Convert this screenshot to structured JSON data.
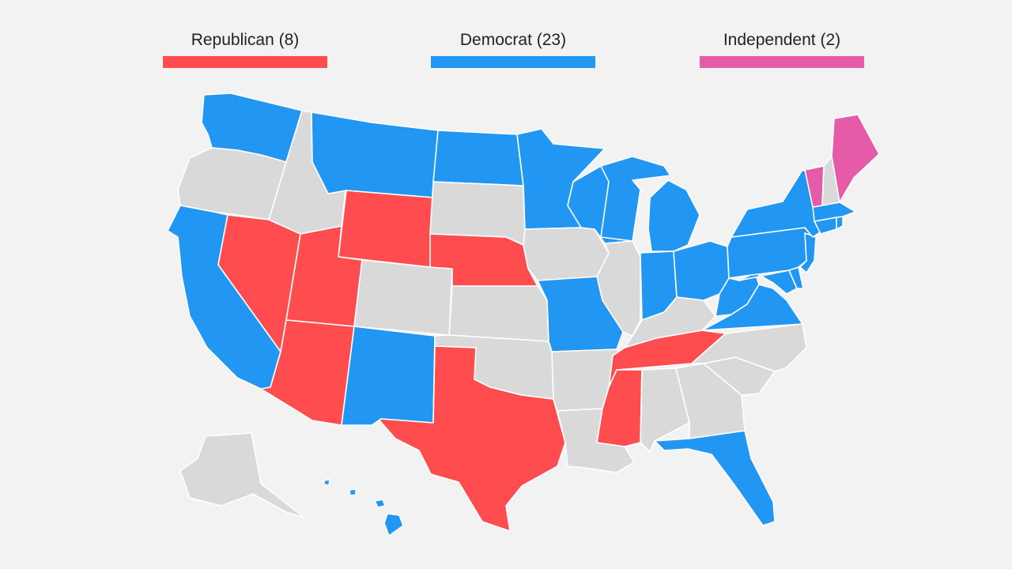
{
  "legend": {
    "republican": {
      "label": "Republican (8)",
      "color": "#ff4d4f"
    },
    "democrat": {
      "label": "Democrat (23)",
      "color": "#2196f3"
    },
    "independent": {
      "label": "Independent (2)",
      "color": "#e55ba7"
    }
  },
  "neutral_color": "#d9d9d9",
  "states": {
    "WA": "democrat",
    "OR": "none",
    "CA": "democrat",
    "ID": "none",
    "NV": "republican",
    "MT": "democrat",
    "WY": "republican",
    "UT": "republican",
    "AZ": "republican",
    "CO": "none",
    "NM": "democrat",
    "ND": "democrat",
    "SD": "none",
    "NE": "republican",
    "KS": "none",
    "OK": "none",
    "TX": "republican",
    "MN": "democrat",
    "IA": "none",
    "MO": "democrat",
    "AR": "none",
    "LA": "none",
    "WI": "democrat",
    "IL": "none",
    "MI": "democrat",
    "IN": "democrat",
    "OH": "democrat",
    "KY": "none",
    "TN": "republican",
    "MS": "republican",
    "AL": "none",
    "GA": "none",
    "FL": "democrat",
    "SC": "none",
    "NC": "none",
    "VA": "democrat",
    "WV": "democrat",
    "PA": "democrat",
    "NY": "democrat",
    "NJ": "democrat",
    "DE": "democrat",
    "MD": "democrat",
    "CT": "democrat",
    "RI": "democrat",
    "MA": "democrat",
    "VT": "independent",
    "NH": "none",
    "ME": "independent",
    "AK": "none",
    "HI": "democrat"
  }
}
